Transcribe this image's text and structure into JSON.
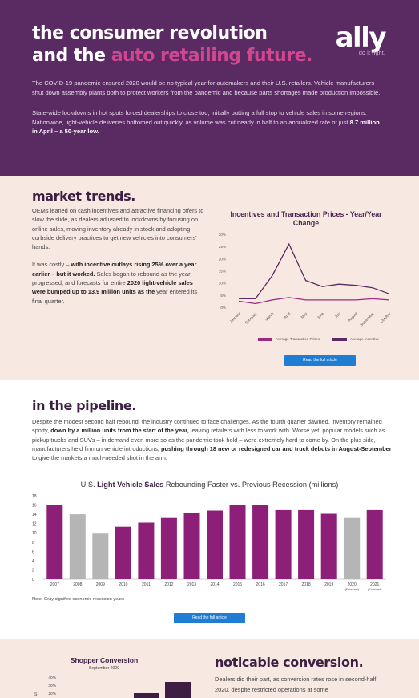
{
  "hero": {
    "title_line1": "the consumer revolution",
    "title_line2_plain": "and the ",
    "title_line2_accent": "auto retailing future.",
    "logo_word": "ally",
    "logo_tagline": "do it right.",
    "para1": "The COVID-19 pandemic ensured 2020 would be no typical year for automakers and their U.S. retailers. Vehicle manufacturers shut down assembly plants both to protect workers from the pandemic and because parts shortages made production impossible.",
    "para2_text": "State-wide lockdowns in hot spots forced dealerships to close too, initially putting a full stop to vehicle sales in some regions. Nationwide, light-vehicle deliveries bottomed out quickly, as volume was cut nearly in half to an annualized rate of just ",
    "para2_bold": "8.7 million in April – a 50-year low."
  },
  "market_trends": {
    "heading": "market trends.",
    "para1": "OEMs leaned on cash incentives and attractive financing offers to slow the slide, as dealers adjusted to lockdowns by focusing on online sales, moving inventory already in stock and adopting curbside delivery practices to get new vehicles into consumers' hands.",
    "para2_start": "It was costly – ",
    "para2_bold1": "with incentive outlays rising 25% over a year earlier – but it worked.",
    "para2_mid": " Sales began to rebound as the year progressed, and forecasts for entire ",
    "para2_bold2": "2020 light-vehicle sales were bumped up to 13.9 million units as the",
    "para2_end": " year entered its final quarter.",
    "button_label": "Read the full article"
  },
  "chart_incentives": {
    "type": "line",
    "title": "Incentives and Transaction Prices - Year/Year Change",
    "categories": [
      "January",
      "February",
      "March",
      "April",
      "May",
      "June",
      "July",
      "August",
      "September",
      "October"
    ],
    "y_ticks": [
      "30%",
      "25%",
      "20%",
      "15%",
      "10%",
      "5%",
      "0%"
    ],
    "ylim": [
      0,
      30
    ],
    "series": [
      {
        "name": "Average Transaction Prices",
        "color": "#9e2a80",
        "values": [
          2.5,
          1.5,
          3.0,
          4.0,
          3.0,
          3.0,
          3.0,
          3.0,
          3.5,
          3.0
        ]
      },
      {
        "name": "Average Incentive",
        "color": "#5a2a63",
        "values": [
          3.5,
          3.5,
          13.0,
          26.0,
          11.0,
          8.5,
          9.5,
          9.0,
          8.0,
          5.5
        ]
      }
    ],
    "legend_position": "bottom"
  },
  "pipeline": {
    "heading": "in the pipeline.",
    "text_a": "Despite the modest second half rebound, the industry continued to face challenges. As the fourth quarter dawned, inventory remained spotty, ",
    "text_b": "down by a million units from the start of the year,",
    "text_c": " leaving retailers with less to work with. Worse yet, popular models such as pickup trucks and SUVs – in demand even more so as the pandemic took hold – were extremely hard to come by. On the plus side, manufacturers held firm on vehicle introductions, ",
    "text_d": "pushing through 18 new or redesigned car and truck debuts in August-September",
    "text_e": " to give the markets a much-needed shot in the arm.",
    "note": "Note: Gray signifies economic recession years",
    "button_label": "Read the full article"
  },
  "chart_sales": {
    "type": "bar",
    "title_pre": "U.S. ",
    "title_bold": "Light Vehicle Sales",
    "title_post": " Rebounding Faster vs. Previous Recession (millions)",
    "categories": [
      "2007",
      "2008",
      "2009",
      "2010",
      "2011",
      "2012",
      "2013",
      "2014",
      "2015",
      "2016",
      "2017",
      "2018",
      "2019",
      "2020",
      "2021"
    ],
    "category_notes": [
      "",
      "",
      "",
      "",
      "",
      "",
      "",
      "",
      "",
      "",
      "",
      "",
      "",
      "(Forecast)",
      "(Forecast)"
    ],
    "values": [
      16.0,
      14.0,
      10.0,
      11.3,
      12.2,
      13.2,
      14.2,
      14.8,
      16.0,
      16.0,
      14.9,
      14.9,
      14.1,
      13.2,
      14.9
    ],
    "recession": [
      false,
      true,
      true,
      false,
      false,
      false,
      false,
      false,
      false,
      false,
      false,
      false,
      false,
      true,
      false
    ],
    "y_ticks": [
      "18",
      "16",
      "14",
      "12",
      "10",
      "8",
      "6",
      "4",
      "2",
      "0"
    ],
    "ylim": [
      0,
      18
    ],
    "colors": {
      "normal": "#8e1f78",
      "recession": "#b5b5b5"
    }
  },
  "conversion": {
    "chart_title": "Shopper Conversion",
    "chart_subtitle": "September 2020",
    "y_ticks": [
      "40%",
      "30%",
      "20%"
    ],
    "y_axis_letter": "S",
    "heading": "noticable conversion.",
    "para": "Dealers did their part, as conversion rates rose in second-half 2020, despite restricted operations at some"
  }
}
